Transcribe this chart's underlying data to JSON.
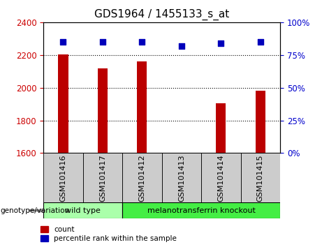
{
  "title": "GDS1964 / 1455133_s_at",
  "samples": [
    "GSM101416",
    "GSM101417",
    "GSM101412",
    "GSM101413",
    "GSM101414",
    "GSM101415"
  ],
  "counts": [
    2205,
    2120,
    2160,
    1600,
    1905,
    1980
  ],
  "percentile_ranks": [
    85,
    85,
    85,
    82,
    84,
    85
  ],
  "ylim_left": [
    1600,
    2400
  ],
  "ylim_right": [
    0,
    100
  ],
  "yticks_left": [
    1600,
    1800,
    2000,
    2200,
    2400
  ],
  "yticks_right": [
    0,
    25,
    50,
    75,
    100
  ],
  "bar_color": "#bb0000",
  "dot_color": "#0000bb",
  "grid_color": "#000000",
  "groups": [
    {
      "label": "wild type",
      "indices": [
        0,
        1
      ],
      "color": "#aaffaa"
    },
    {
      "label": "melanotransferrin knockout",
      "indices": [
        2,
        3,
        4,
        5
      ],
      "color": "#44ee44"
    }
  ],
  "genotype_label": "genotype/variation",
  "legend_count": "count",
  "legend_percentile": "percentile rank within the sample",
  "bg_color": "#ffffff",
  "plot_bg_color": "#ffffff",
  "xtick_bg_color": "#cccccc",
  "tick_label_color_left": "#cc0000",
  "tick_label_color_right": "#0000cc",
  "bar_width": 0.25,
  "title_fontsize": 11,
  "axis_fontsize": 8,
  "tick_fontsize": 8.5,
  "dot_size": 28
}
